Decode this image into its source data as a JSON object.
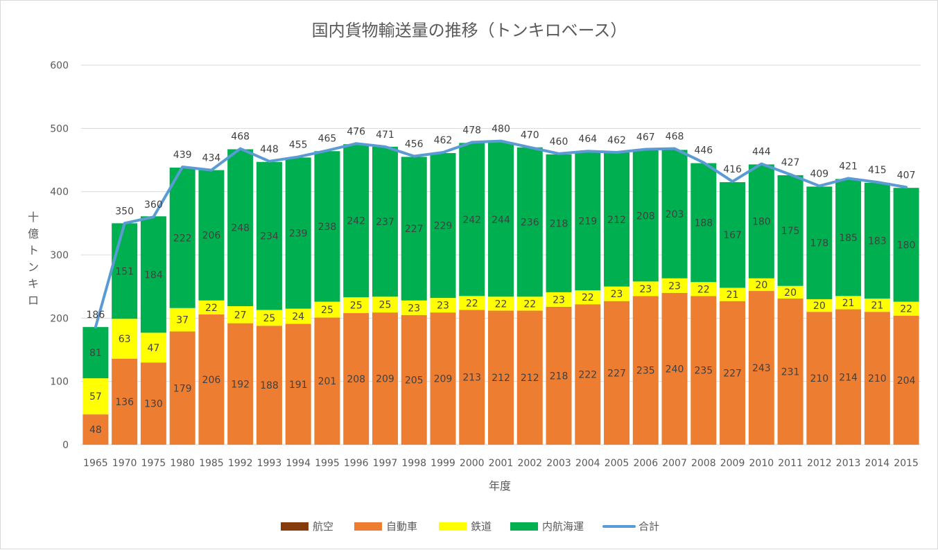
{
  "chart_data": {
    "type": "bar",
    "stacked": true,
    "title": "国内貨物輸送量の推移（トンキロベース）",
    "xlabel": "年度",
    "ylabel": "十億トンキロ",
    "ylim": [
      0,
      600
    ],
    "yticks": [
      "0",
      "100",
      "200",
      "300",
      "400",
      "500",
      "600"
    ],
    "grid": true,
    "legend_position": "bottom",
    "categories": [
      "1965",
      "1970",
      "1975",
      "1980",
      "1985",
      "1992",
      "1993",
      "1994",
      "1995",
      "1996",
      "1997",
      "1998",
      "1999",
      "2000",
      "2001",
      "2002",
      "2003",
      "2004",
      "2005",
      "2006",
      "2007",
      "2008",
      "2009",
      "2010",
      "2011",
      "2012",
      "2013",
      "2014",
      "2015"
    ],
    "series": [
      {
        "name": "航空",
        "type": "bar",
        "color": "#843c0c",
        "values": [
          0,
          0,
          0,
          0,
          0,
          0,
          0,
          0,
          0,
          0,
          0,
          0,
          0,
          0,
          0,
          0,
          0,
          0,
          0,
          0,
          0,
          0,
          0,
          0,
          0,
          0,
          0,
          0,
          0
        ]
      },
      {
        "name": "自動車",
        "type": "bar",
        "color": "#ed7d31",
        "values": [
          48,
          136,
          130,
          179,
          206,
          192,
          188,
          191,
          201,
          208,
          209,
          205,
          209,
          213,
          212,
          212,
          218,
          222,
          227,
          235,
          240,
          235,
          227,
          243,
          231,
          210,
          214,
          210,
          204
        ]
      },
      {
        "name": "鉄道",
        "type": "bar",
        "color": "#ffff00",
        "values": [
          57,
          63,
          47,
          37,
          22,
          27,
          25,
          24,
          25,
          25,
          25,
          23,
          23,
          22,
          22,
          22,
          23,
          22,
          23,
          23,
          23,
          22,
          21,
          20,
          20,
          20,
          21,
          21,
          22
        ]
      },
      {
        "name": "内航海運",
        "type": "bar",
        "color": "#00b050",
        "values": [
          81,
          151,
          184,
          222,
          206,
          248,
          234,
          239,
          238,
          242,
          237,
          227,
          229,
          242,
          244,
          236,
          218,
          219,
          212,
          208,
          203,
          188,
          167,
          180,
          175,
          178,
          185,
          183,
          180
        ]
      },
      {
        "name": "合計",
        "type": "line",
        "color": "#5b9bd5",
        "values": [
          186,
          350,
          360,
          439,
          434,
          468,
          448,
          455,
          465,
          476,
          471,
          456,
          462,
          478,
          480,
          470,
          460,
          464,
          462,
          467,
          468,
          446,
          416,
          444,
          427,
          409,
          421,
          415,
          407
        ]
      }
    ]
  }
}
